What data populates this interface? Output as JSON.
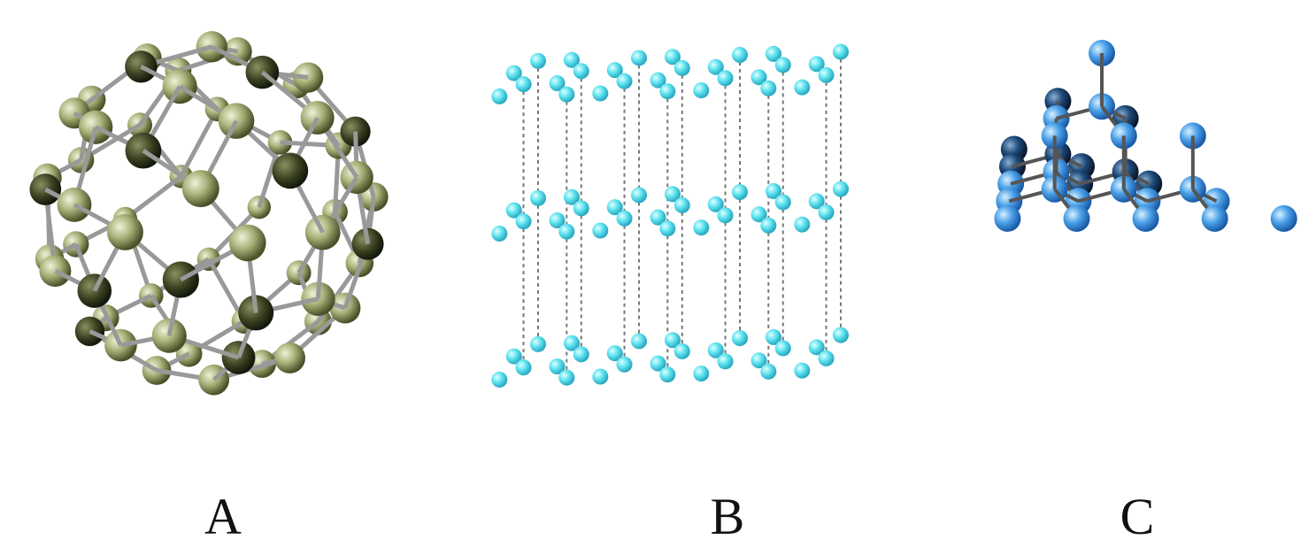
{
  "figures": [
    {
      "label": "A"
    },
    {
      "label": "B"
    },
    {
      "label": "C"
    }
  ]
}
